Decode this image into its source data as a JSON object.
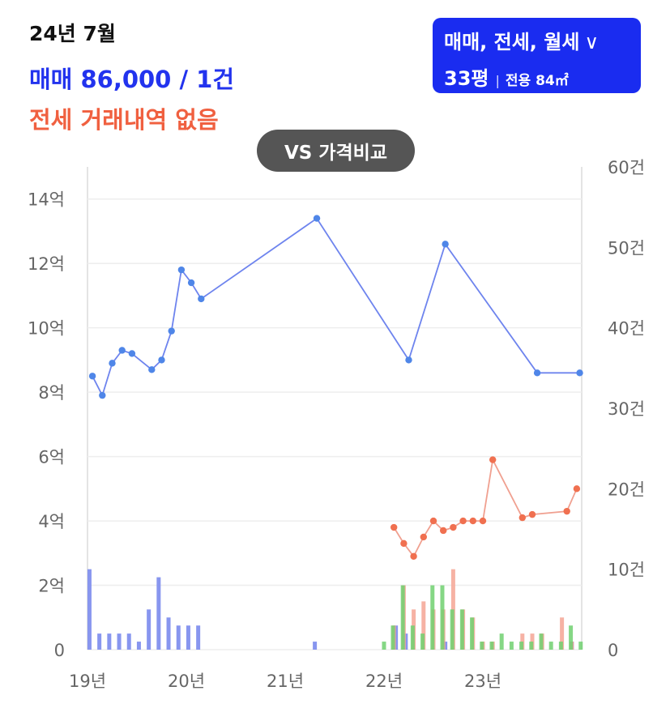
{
  "header": {
    "period": "24년 7월",
    "sale_summary": "매매 86,000 / 1건",
    "jeonse_summary": "전세 거래내역 없음"
  },
  "filter": {
    "trade_types": "매매, 전세, 월세",
    "pyeong": "33평",
    "area_label": "전용 84㎡",
    "chevron_icon": "chevron-down-icon"
  },
  "compare_button": {
    "label": "VS 가격비교"
  },
  "colors": {
    "sale": "#2233ee",
    "jeonse": "#f06040",
    "filter_bg": "#1a2cf0",
    "sale_line": "#6e84ee",
    "sale_point": "#4f86e8",
    "jeonse_line": "#f0a090",
    "jeonse_point": "#f07050",
    "sale_bar": "#8290ee",
    "jeonse_bar": "#f4a494",
    "monthly_bar": "#70d070",
    "grid": "#eeeeee",
    "vs_bg": "#555555"
  },
  "chart_data": {
    "type": "line",
    "x_ticks": [
      "19년",
      "20년",
      "21년",
      "22년",
      "23년"
    ],
    "x_tick_values": [
      2019.0,
      2020.0,
      2021.0,
      2022.0,
      2023.0
    ],
    "xlim": [
      2019.0,
      2024.0
    ],
    "y_left_ticks": [
      "0",
      "2억",
      "4억",
      "6억",
      "8억",
      "10억",
      "12억",
      "14억"
    ],
    "y_left_values": [
      0,
      2,
      4,
      6,
      8,
      10,
      12,
      14
    ],
    "ylim_left": [
      0,
      15
    ],
    "y_right_ticks": [
      "0",
      "10건",
      "20건",
      "30건",
      "40건",
      "50건",
      "60건"
    ],
    "y_right_values": [
      0,
      10,
      20,
      30,
      40,
      50,
      60
    ],
    "ylim_right": [
      0,
      60
    ],
    "series": [
      {
        "type": "line",
        "axis": "left",
        "x": [
          2019.05,
          2019.15,
          2019.25,
          2019.35,
          2019.45,
          2019.65,
          2019.75,
          2019.85,
          2019.95,
          2020.05,
          2020.15,
          2021.32,
          2022.25,
          2022.62,
          2023.55,
          2023.98
        ],
        "y": [
          8.5,
          7.9,
          8.9,
          9.3,
          9.2,
          8.7,
          9.0,
          9.9,
          11.8,
          11.4,
          10.9,
          13.4,
          9.0,
          12.6,
          8.6,
          8.6
        ]
      },
      {
        "type": "line",
        "axis": "left",
        "x": [
          2022.1,
          2022.2,
          2022.3,
          2022.4,
          2022.5,
          2022.6,
          2022.7,
          2022.8,
          2022.9,
          2023.0,
          2023.1,
          2023.4,
          2023.5,
          2023.85,
          2023.95
        ],
        "y": [
          3.8,
          3.3,
          2.9,
          3.5,
          4.0,
          3.7,
          3.8,
          4.0,
          4.0,
          4.0,
          5.9,
          4.1,
          4.2,
          4.3,
          5.0
        ]
      },
      {
        "type": "bar",
        "axis": "right",
        "x": [
          2019.02,
          2019.12,
          2019.22,
          2019.32,
          2019.42,
          2019.52,
          2019.62,
          2019.72,
          2019.82,
          2019.92,
          2020.02,
          2020.12,
          2021.3,
          2022.12,
          2022.22,
          2022.62,
          2023.9
        ],
        "y": [
          10,
          2,
          2,
          2,
          2,
          1,
          5,
          9,
          4,
          3,
          3,
          3,
          1,
          3,
          2,
          1,
          1
        ]
      },
      {
        "type": "bar",
        "axis": "right",
        "x": [
          2022.1,
          2022.2,
          2022.3,
          2022.4,
          2022.5,
          2022.6,
          2022.7,
          2022.8,
          2022.9,
          2023.0,
          2023.1,
          2023.4,
          2023.5,
          2023.6,
          2023.8,
          2023.9
        ],
        "y": [
          3,
          8,
          5,
          6,
          5,
          5,
          10,
          5,
          4,
          1,
          1,
          2,
          2,
          2,
          4,
          1
        ]
      },
      {
        "type": "bar",
        "axis": "right",
        "x": [
          2022.0,
          2022.09,
          2022.19,
          2022.29,
          2022.39,
          2022.49,
          2022.59,
          2022.69,
          2022.79,
          2022.89,
          2022.99,
          2023.09,
          2023.19,
          2023.29,
          2023.39,
          2023.49,
          2023.59,
          2023.69,
          2023.79,
          2023.89,
          2023.99
        ],
        "y": [
          1,
          3,
          8,
          3,
          2,
          8,
          8,
          5,
          5,
          4,
          1,
          1,
          2,
          1,
          1,
          1,
          2,
          1,
          1,
          3,
          1
        ]
      }
    ],
    "grid": true
  }
}
